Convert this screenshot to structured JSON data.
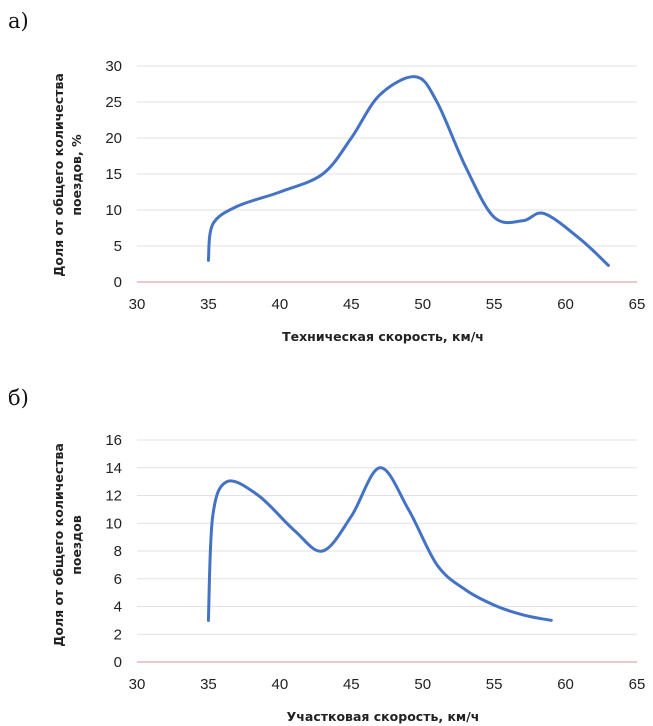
{
  "chart_data": [
    {
      "type": "line",
      "panel_label": "а)",
      "xlabel": "Техническая скорость, км/ч",
      "ylabel_lines": [
        "Доля от общего количества",
        "поездов, %"
      ],
      "xlim": [
        30,
        65
      ],
      "ylim": [
        0,
        30
      ],
      "xticks": [
        30,
        35,
        40,
        45,
        50,
        55,
        60,
        65
      ],
      "yticks": [
        0,
        5,
        10,
        15,
        20,
        25,
        30
      ],
      "grid": true,
      "series": [
        {
          "color": "#4472c4",
          "x": [
            35,
            35.3,
            37,
            40,
            43,
            45,
            47,
            49.5,
            51,
            53,
            55,
            57,
            58.5,
            61,
            63
          ],
          "y": [
            3,
            8,
            10.5,
            12.5,
            15,
            20,
            26,
            28.5,
            25,
            16,
            9,
            8.5,
            9.5,
            6,
            2.3
          ]
        }
      ]
    },
    {
      "type": "line",
      "panel_label": "б)",
      "xlabel": "Участковая скорость, км/ч",
      "ylabel_lines": [
        "Доля от общего количества",
        "поездов"
      ],
      "xlim": [
        30,
        65
      ],
      "ylim": [
        0,
        16
      ],
      "xticks": [
        30,
        35,
        40,
        45,
        50,
        55,
        60,
        65
      ],
      "yticks": [
        0,
        2,
        4,
        6,
        8,
        10,
        12,
        14,
        16
      ],
      "grid": true,
      "series": [
        {
          "color": "#4472c4",
          "x": [
            35,
            35.3,
            36.3,
            38.5,
            41,
            43,
            45,
            47,
            49,
            51,
            53,
            55,
            57,
            59
          ],
          "y": [
            3,
            10.5,
            13,
            12,
            9.5,
            8,
            10.5,
            14,
            11,
            7,
            5.2,
            4.1,
            3.4,
            3
          ]
        }
      ]
    }
  ]
}
